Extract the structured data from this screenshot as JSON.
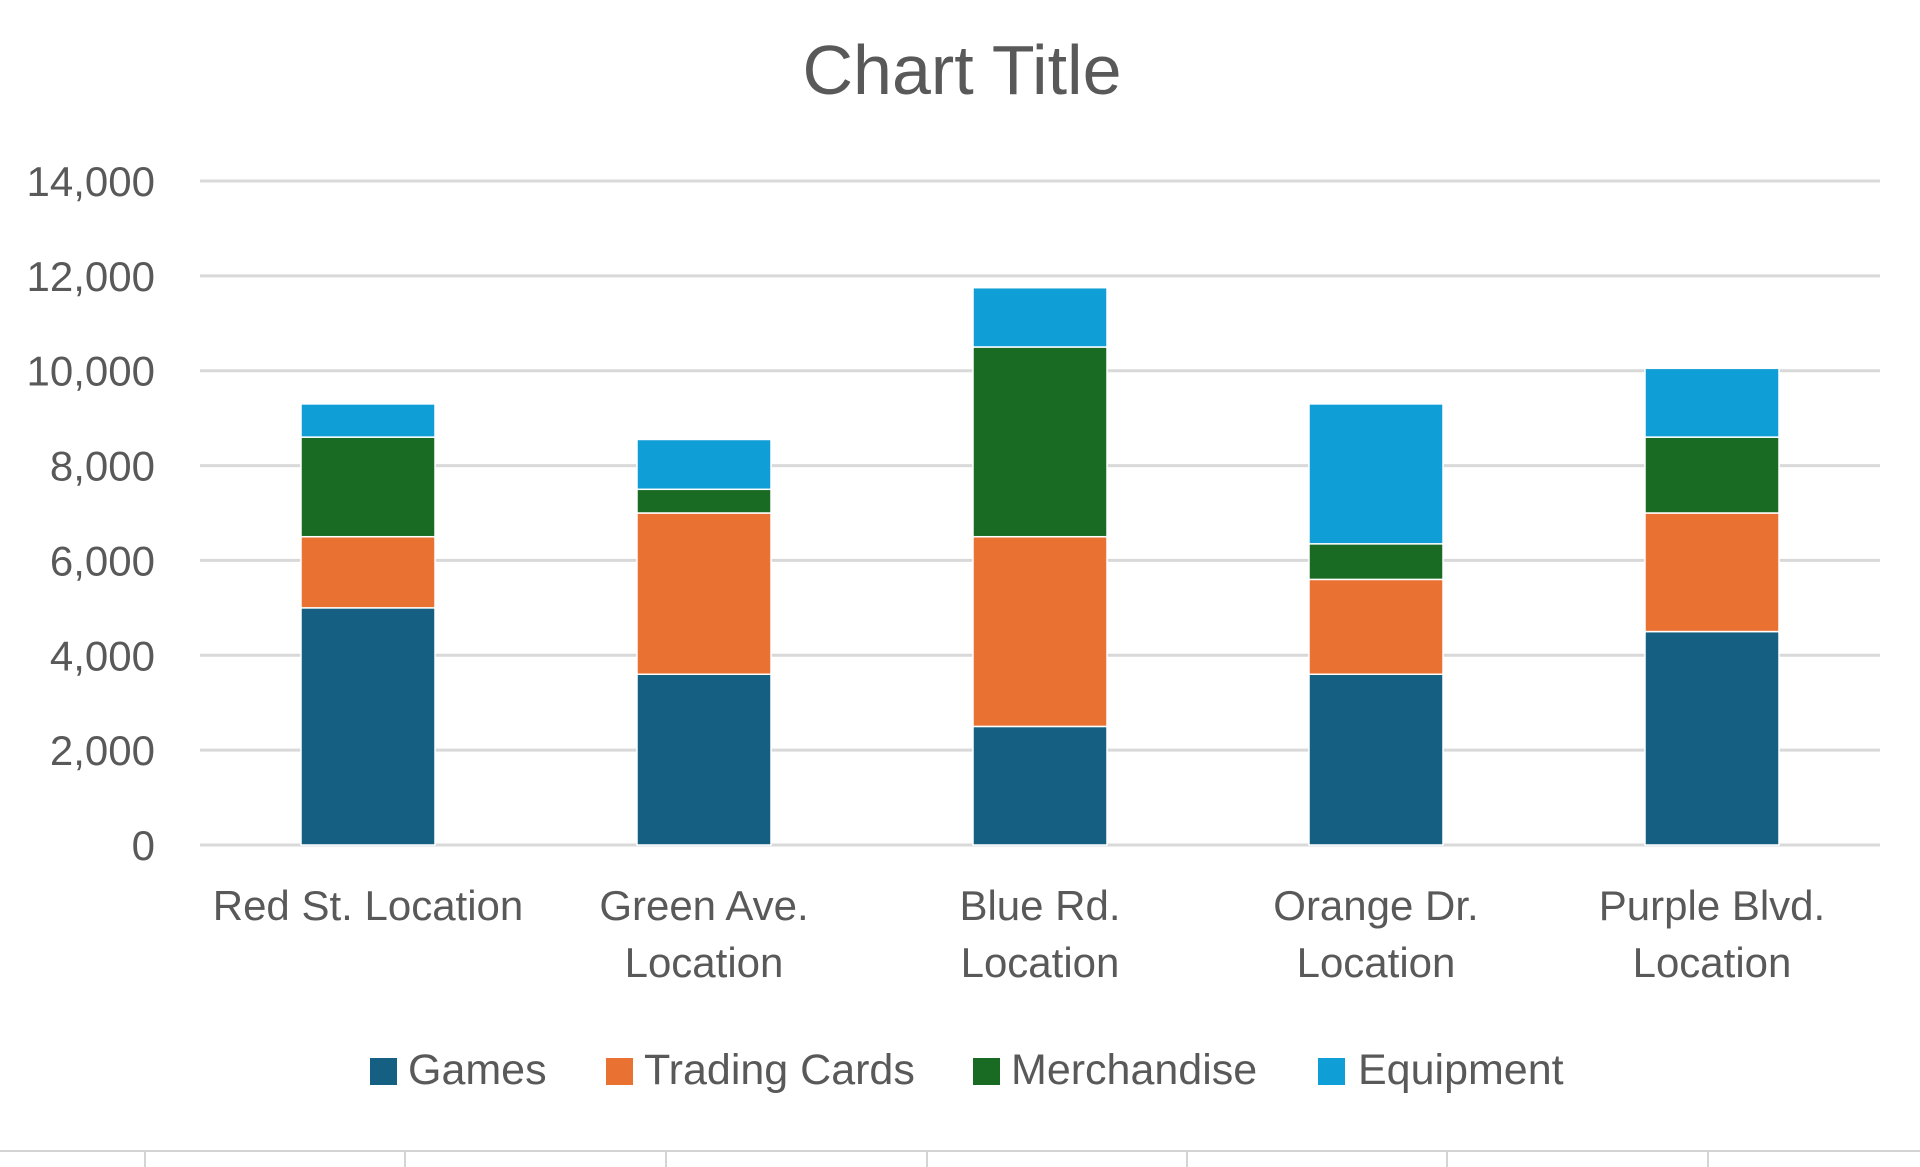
{
  "chart_data": {
    "type": "bar",
    "stacked": true,
    "title": "Chart Title",
    "xlabel": "",
    "ylabel": "",
    "ylim": [
      0,
      14000
    ],
    "yticks": [
      0,
      2000,
      4000,
      6000,
      8000,
      10000,
      12000,
      14000
    ],
    "ytick_labels": [
      "0",
      "2,000",
      "4,000",
      "6,000",
      "8,000",
      "10,000",
      "12,000",
      "14,000"
    ],
    "grid": true,
    "legend_position": "bottom",
    "categories": [
      [
        "Red St. Location"
      ],
      [
        "Green Ave.",
        "Location"
      ],
      [
        "Blue Rd.",
        "Location"
      ],
      [
        "Orange Dr.",
        "Location"
      ],
      [
        "Purple Blvd.",
        "Location"
      ]
    ],
    "series": [
      {
        "name": "Games",
        "color": "#156082",
        "values": [
          5000,
          3600,
          2500,
          3600,
          4500
        ]
      },
      {
        "name": "Trading Cards",
        "color": "#E97132",
        "values": [
          1500,
          3400,
          4000,
          2000,
          2500
        ]
      },
      {
        "name": "Merchandise",
        "color": "#196B24",
        "values": [
          2100,
          500,
          4000,
          750,
          1600
        ]
      },
      {
        "name": "Equipment",
        "color": "#0F9ED5",
        "values": [
          700,
          1050,
          1250,
          2950,
          1450
        ]
      }
    ]
  }
}
